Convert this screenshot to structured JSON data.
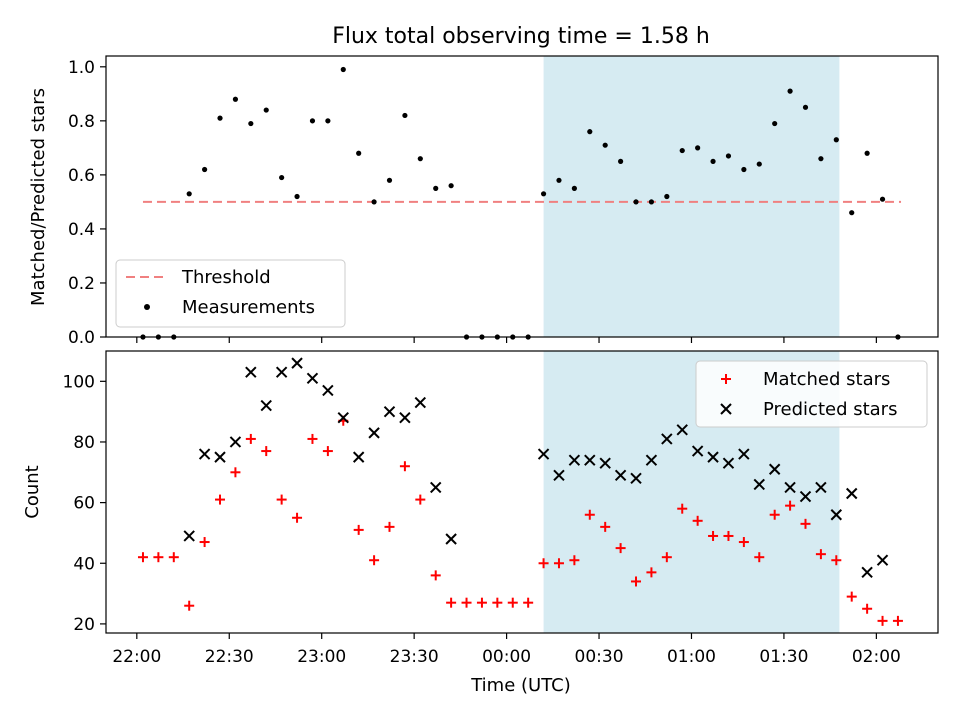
{
  "title": "Flux total observing time = 1.58 h",
  "colors": {
    "threshold": "#f08080",
    "measurement": "#000000",
    "matched": "#ff0000",
    "predicted": "#000000",
    "highlight": "#add8e6"
  },
  "chart_data": [
    {
      "type": "scatter",
      "title": "Flux total observing time = 1.58 h",
      "ylabel": "Matched/Predicted stars",
      "xlabel": "",
      "ylim": [
        0,
        1.04
      ],
      "yticks": [
        0.0,
        0.2,
        0.4,
        0.6,
        0.8,
        1.0
      ],
      "ytick_labels": [
        "0.0",
        "0.2",
        "0.4",
        "0.6",
        "0.8",
        "1.0"
      ],
      "grid": false,
      "legend_position": "lower-left",
      "highlight_span": [
        "00:12",
        "01:48"
      ],
      "threshold": {
        "name": "Threshold",
        "value": 0.5,
        "x_start": "22:02",
        "x_end": "02:08"
      },
      "series": [
        {
          "name": "Measurements",
          "points": [
            [
              "22:02",
              0.0
            ],
            [
              "22:07",
              0.0
            ],
            [
              "22:12",
              0.0
            ],
            [
              "22:17",
              0.53
            ],
            [
              "22:22",
              0.62
            ],
            [
              "22:27",
              0.81
            ],
            [
              "22:32",
              0.88
            ],
            [
              "22:37",
              0.79
            ],
            [
              "22:42",
              0.84
            ],
            [
              "22:47",
              0.59
            ],
            [
              "22:52",
              0.52
            ],
            [
              "22:57",
              0.8
            ],
            [
              "23:02",
              0.8
            ],
            [
              "23:07",
              0.99
            ],
            [
              "23:12",
              0.68
            ],
            [
              "23:17",
              0.5
            ],
            [
              "23:22",
              0.58
            ],
            [
              "23:27",
              0.82
            ],
            [
              "23:32",
              0.66
            ],
            [
              "23:37",
              0.55
            ],
            [
              "23:42",
              0.56
            ],
            [
              "23:47",
              0.0
            ],
            [
              "23:52",
              0.0
            ],
            [
              "23:57",
              0.0
            ],
            [
              "00:02",
              0.0
            ],
            [
              "00:07",
              0.0
            ],
            [
              "00:12",
              0.53
            ],
            [
              "00:17",
              0.58
            ],
            [
              "00:22",
              0.55
            ],
            [
              "00:27",
              0.76
            ],
            [
              "00:32",
              0.71
            ],
            [
              "00:37",
              0.65
            ],
            [
              "00:42",
              0.5
            ],
            [
              "00:47",
              0.5
            ],
            [
              "00:52",
              0.52
            ],
            [
              "00:57",
              0.69
            ],
            [
              "01:02",
              0.7
            ],
            [
              "01:07",
              0.65
            ],
            [
              "01:12",
              0.67
            ],
            [
              "01:17",
              0.62
            ],
            [
              "01:22",
              0.64
            ],
            [
              "01:27",
              0.79
            ],
            [
              "01:32",
              0.91
            ],
            [
              "01:37",
              0.85
            ],
            [
              "01:42",
              0.66
            ],
            [
              "01:47",
              0.73
            ],
            [
              "01:52",
              0.46
            ],
            [
              "01:57",
              0.68
            ],
            [
              "02:02",
              0.51
            ],
            [
              "02:07",
              0.0
            ]
          ]
        }
      ]
    },
    {
      "type": "scatter",
      "title": "",
      "ylabel": "Count",
      "xlabel": "Time (UTC)",
      "ylim": [
        17,
        110
      ],
      "yticks": [
        20,
        40,
        60,
        80,
        100
      ],
      "ytick_labels": [
        "20",
        "40",
        "60",
        "80",
        "100"
      ],
      "xticks": [
        "22:00",
        "22:30",
        "23:00",
        "23:30",
        "00:00",
        "00:30",
        "01:00",
        "01:30",
        "02:00"
      ],
      "xlim": [
        "21:50",
        "02:20"
      ],
      "grid": false,
      "legend_position": "upper-right",
      "highlight_span": [
        "00:12",
        "01:48"
      ],
      "series": [
        {
          "name": "Matched stars",
          "marker": "+",
          "points": [
            [
              "22:02",
              42
            ],
            [
              "22:07",
              42
            ],
            [
              "22:12",
              42
            ],
            [
              "22:17",
              26
            ],
            [
              "22:22",
              47
            ],
            [
              "22:27",
              61
            ],
            [
              "22:32",
              70
            ],
            [
              "22:37",
              81
            ],
            [
              "22:42",
              77
            ],
            [
              "22:47",
              61
            ],
            [
              "22:52",
              55
            ],
            [
              "22:57",
              81
            ],
            [
              "23:02",
              77
            ],
            [
              "23:07",
              87
            ],
            [
              "23:12",
              51
            ],
            [
              "23:17",
              41
            ],
            [
              "23:22",
              52
            ],
            [
              "23:27",
              72
            ],
            [
              "23:32",
              61
            ],
            [
              "23:37",
              36
            ],
            [
              "23:42",
              27
            ],
            [
              "23:47",
              27
            ],
            [
              "23:52",
              27
            ],
            [
              "23:57",
              27
            ],
            [
              "00:02",
              27
            ],
            [
              "00:07",
              27
            ],
            [
              "00:12",
              40
            ],
            [
              "00:17",
              40
            ],
            [
              "00:22",
              41
            ],
            [
              "00:27",
              56
            ],
            [
              "00:32",
              52
            ],
            [
              "00:37",
              45
            ],
            [
              "00:42",
              34
            ],
            [
              "00:47",
              37
            ],
            [
              "00:52",
              42
            ],
            [
              "00:57",
              58
            ],
            [
              "01:02",
              54
            ],
            [
              "01:07",
              49
            ],
            [
              "01:12",
              49
            ],
            [
              "01:17",
              47
            ],
            [
              "01:22",
              42
            ],
            [
              "01:27",
              56
            ],
            [
              "01:32",
              59
            ],
            [
              "01:37",
              53
            ],
            [
              "01:42",
              43
            ],
            [
              "01:47",
              41
            ],
            [
              "01:52",
              29
            ],
            [
              "01:57",
              25
            ],
            [
              "02:02",
              21
            ],
            [
              "02:07",
              21
            ]
          ]
        },
        {
          "name": "Predicted stars",
          "marker": "x",
          "points": [
            [
              "22:17",
              49
            ],
            [
              "22:22",
              76
            ],
            [
              "22:27",
              75
            ],
            [
              "22:32",
              80
            ],
            [
              "22:37",
              103
            ],
            [
              "22:42",
              92
            ],
            [
              "22:47",
              103
            ],
            [
              "22:52",
              106
            ],
            [
              "22:57",
              101
            ],
            [
              "23:02",
              97
            ],
            [
              "23:07",
              88
            ],
            [
              "23:12",
              75
            ],
            [
              "23:17",
              83
            ],
            [
              "23:22",
              90
            ],
            [
              "23:27",
              88
            ],
            [
              "23:32",
              93
            ],
            [
              "23:37",
              65
            ],
            [
              "23:42",
              48
            ],
            [
              "00:12",
              76
            ],
            [
              "00:17",
              69
            ],
            [
              "00:22",
              74
            ],
            [
              "00:27",
              74
            ],
            [
              "00:32",
              73
            ],
            [
              "00:37",
              69
            ],
            [
              "00:42",
              68
            ],
            [
              "00:47",
              74
            ],
            [
              "00:52",
              81
            ],
            [
              "00:57",
              84
            ],
            [
              "01:02",
              77
            ],
            [
              "01:07",
              75
            ],
            [
              "01:12",
              73
            ],
            [
              "01:17",
              76
            ],
            [
              "01:22",
              66
            ],
            [
              "01:27",
              71
            ],
            [
              "01:32",
              65
            ],
            [
              "01:37",
              62
            ],
            [
              "01:42",
              65
            ],
            [
              "01:47",
              56
            ],
            [
              "01:52",
              63
            ],
            [
              "01:57",
              37
            ],
            [
              "02:02",
              41
            ]
          ]
        }
      ]
    }
  ]
}
